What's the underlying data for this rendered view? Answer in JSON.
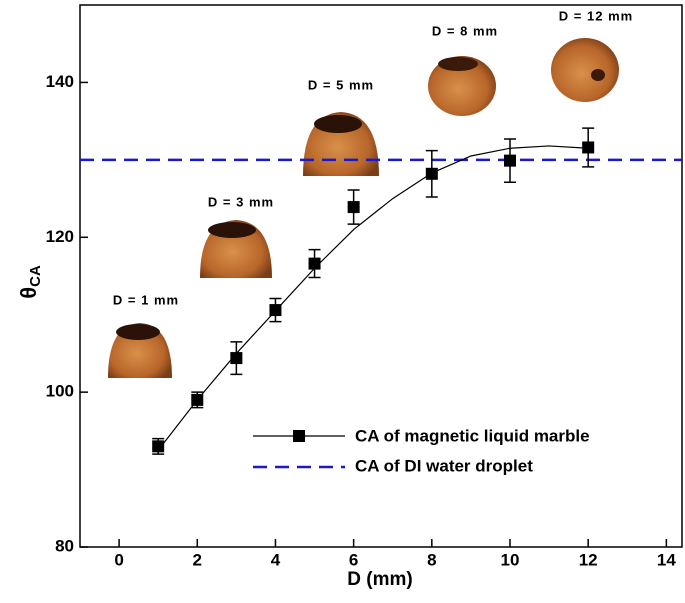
{
  "chart_data": {
    "type": "scatter",
    "xlabel": "D (mm)",
    "ylabel": "θ",
    "ylabel_sub": "CA",
    "xlim": [
      -1,
      14.4
    ],
    "ylim": [
      80,
      150
    ],
    "xticks": [
      0,
      2,
      4,
      6,
      8,
      10,
      12,
      14
    ],
    "yticks": [
      80,
      100,
      120,
      140
    ],
    "series": [
      {
        "name": "CA of magnetic liquid marble",
        "color": "#000000",
        "x": [
          1,
          2,
          3,
          4,
          5,
          6,
          8,
          10,
          12
        ],
        "values": [
          93,
          99,
          104.4,
          110.6,
          116.6,
          123.9,
          128.2,
          129.9,
          131.6
        ],
        "errors": [
          1,
          1,
          2.1,
          1.5,
          1.8,
          2.2,
          3,
          2.8,
          2.5
        ],
        "curve": {
          "x": [
            1,
            2,
            3,
            4,
            5,
            6,
            7,
            8,
            9,
            10,
            11,
            12
          ],
          "values": [
            92.5,
            99,
            105,
            110.5,
            116,
            121,
            125,
            128.3,
            130.5,
            131.5,
            131.8,
            131.5
          ]
        }
      },
      {
        "name": "CA of DI water droplet",
        "color": "#1a1acc",
        "value": 130
      }
    ],
    "annotations": [
      "D = 1 mm",
      "D = 3 mm",
      "D = 5 mm",
      "D = 8 mm",
      "D = 12 mm"
    ]
  }
}
